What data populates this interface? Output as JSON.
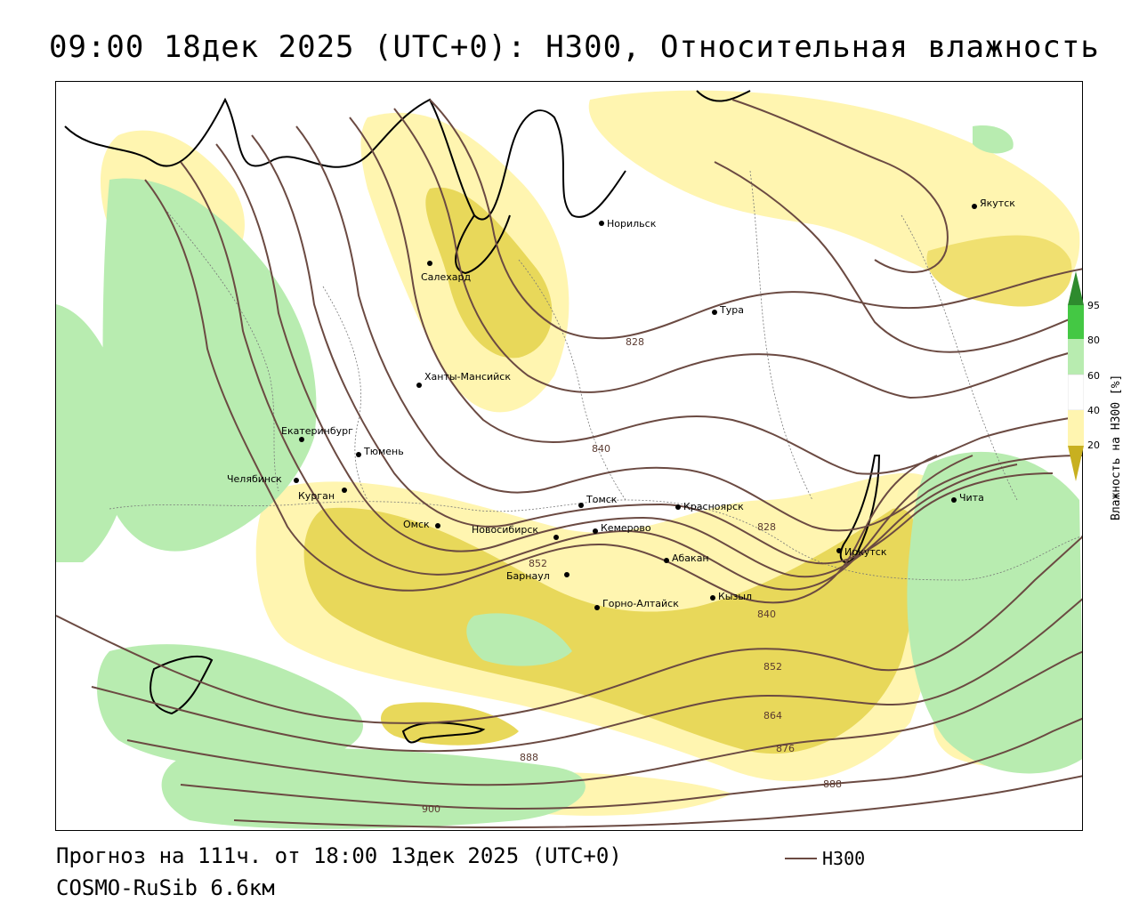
{
  "title": "09:00 18дек 2025 (UTC+0): H300, Относительная влажность",
  "footer": {
    "forecast": "Прогноз на 111ч. от 18:00 13дек 2025 (UTC+0)",
    "model": "COSMO-RuSib 6.6км"
  },
  "legend": {
    "line_label": "H300",
    "line_color": "#6b4a42"
  },
  "colorbar": {
    "title": "Влажность на H300 [%]",
    "ticks": [
      "95",
      "80",
      "60",
      "40",
      "20"
    ],
    "colors": [
      "#2e8b2e",
      "#44c844",
      "#b8ecb0",
      "#ffffff",
      "#fff5b0",
      "#e8d85a",
      "#c8b020"
    ]
  },
  "cities": [
    {
      "name": "Норильск"
    },
    {
      "name": "Якутск"
    },
    {
      "name": "Салехард"
    },
    {
      "name": "Тура"
    },
    {
      "name": "Ханты-Мансийск"
    },
    {
      "name": "Екатеринбург"
    },
    {
      "name": "Тюмень"
    },
    {
      "name": "Челябинск"
    },
    {
      "name": "Курган"
    },
    {
      "name": "Омск"
    },
    {
      "name": "Новосибирск"
    },
    {
      "name": "Томск"
    },
    {
      "name": "Кемерово"
    },
    {
      "name": "Красноярск"
    },
    {
      "name": "Барнаул"
    },
    {
      "name": "Абакан"
    },
    {
      "name": "Горно-Алтайск"
    },
    {
      "name": "Кызыл"
    },
    {
      "name": "Иркутск"
    },
    {
      "name": "Чита"
    }
  ],
  "contour_labels": [
    "828",
    "840",
    "852",
    "828",
    "840",
    "852",
    "864",
    "876",
    "888",
    "888",
    "900"
  ]
}
